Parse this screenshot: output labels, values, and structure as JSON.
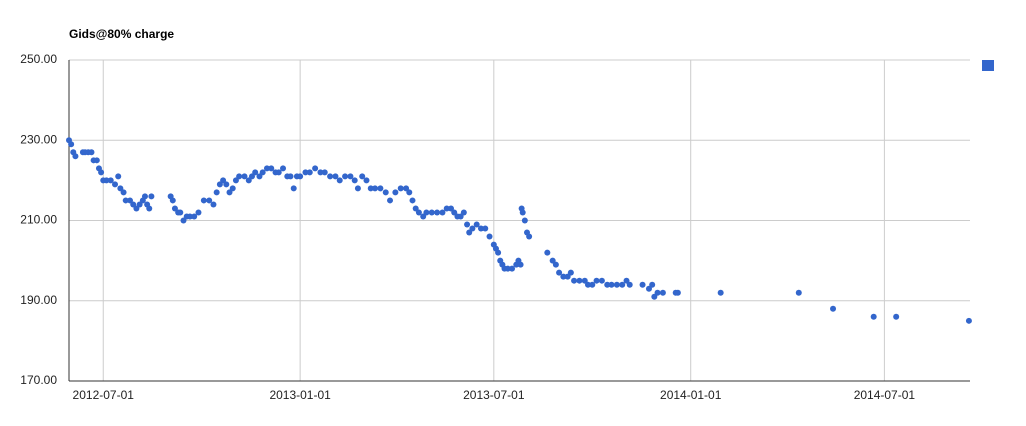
{
  "chart_data": {
    "type": "scatter",
    "title": "Gids@80% charge",
    "x": [
      "2012-05-30",
      "2012-06-01",
      "2012-06-03",
      "2012-06-05",
      "2012-06-12",
      "2012-06-14",
      "2012-06-17",
      "2012-06-20",
      "2012-06-22",
      "2012-06-25",
      "2012-06-27",
      "2012-06-29",
      "2012-07-01",
      "2012-07-04",
      "2012-07-08",
      "2012-07-12",
      "2012-07-15",
      "2012-07-17",
      "2012-07-20",
      "2012-07-22",
      "2012-07-26",
      "2012-07-29",
      "2012-08-01",
      "2012-08-04",
      "2012-08-07",
      "2012-08-09",
      "2012-08-11",
      "2012-08-13",
      "2012-08-15",
      "2012-09-02",
      "2012-09-04",
      "2012-09-06",
      "2012-09-09",
      "2012-09-11",
      "2012-09-14",
      "2012-09-17",
      "2012-09-20",
      "2012-09-24",
      "2012-09-28",
      "2012-10-03",
      "2012-10-08",
      "2012-10-12",
      "2012-10-15",
      "2012-10-18",
      "2012-10-21",
      "2012-10-24",
      "2012-10-27",
      "2012-10-30",
      "2012-11-02",
      "2012-11-05",
      "2012-11-10",
      "2012-11-14",
      "2012-11-17",
      "2012-11-20",
      "2012-11-24",
      "2012-11-27",
      "2012-12-01",
      "2012-12-05",
      "2012-12-09",
      "2012-12-12",
      "2012-12-16",
      "2012-12-20",
      "2012-12-23",
      "2012-12-26",
      "2012-12-29",
      "2013-01-01",
      "2013-01-06",
      "2013-01-10",
      "2013-01-15",
      "2013-01-20",
      "2013-01-24",
      "2013-01-29",
      "2013-02-03",
      "2013-02-07",
      "2013-02-12",
      "2013-02-17",
      "2013-02-21",
      "2013-02-24",
      "2013-02-28",
      "2013-03-04",
      "2013-03-08",
      "2013-03-12",
      "2013-03-17",
      "2013-03-22",
      "2013-03-26",
      "2013-03-31",
      "2013-04-05",
      "2013-04-10",
      "2013-04-13",
      "2013-04-16",
      "2013-04-19",
      "2013-04-22",
      "2013-04-26",
      "2013-04-29",
      "2013-05-04",
      "2013-05-09",
      "2013-05-14",
      "2013-05-18",
      "2013-05-22",
      "2013-05-25",
      "2013-05-28",
      "2013-05-31",
      "2013-06-03",
      "2013-06-06",
      "2013-06-08",
      "2013-06-11",
      "2013-06-15",
      "2013-06-19",
      "2013-06-23",
      "2013-06-27",
      "2013-07-01",
      "2013-07-03",
      "2013-07-05",
      "2013-07-07",
      "2013-07-09",
      "2013-07-11",
      "2013-07-14",
      "2013-07-18",
      "2013-07-22",
      "2013-07-24",
      "2013-07-26",
      "2013-07-27",
      "2013-07-28",
      "2013-07-30",
      "2013-08-01",
      "2013-08-03",
      "2013-08-20",
      "2013-08-25",
      "2013-08-28",
      "2013-08-31",
      "2013-09-04",
      "2013-09-08",
      "2013-09-11",
      "2013-09-14",
      "2013-09-19",
      "2013-09-24",
      "2013-09-27",
      "2013-10-01",
      "2013-10-05",
      "2013-10-10",
      "2013-10-15",
      "2013-10-19",
      "2013-10-24",
      "2013-10-29",
      "2013-11-02",
      "2013-11-05",
      "2013-11-17",
      "2013-11-23",
      "2013-11-26",
      "2013-11-28",
      "2013-12-01",
      "2013-12-06",
      "2013-12-18",
      "2013-12-20",
      "2014-01-29",
      "2014-04-12",
      "2014-05-14",
      "2014-06-21",
      "2014-07-12",
      "2014-09-18"
    ],
    "series": [
      {
        "color": "#3366cc",
        "values": [
          230,
          229,
          227,
          226,
          227,
          227,
          227,
          227,
          225,
          225,
          223,
          222,
          220,
          220,
          220,
          219,
          221,
          218,
          217,
          215,
          215,
          214,
          213,
          214,
          215,
          216,
          214,
          213,
          216,
          216,
          215,
          213,
          212,
          212,
          210,
          211,
          211,
          211,
          212,
          215,
          215,
          214,
          217,
          219,
          220,
          219,
          217,
          218,
          220,
          221,
          221,
          220,
          221,
          222,
          221,
          222,
          223,
          223,
          222,
          222,
          223,
          221,
          221,
          218,
          221,
          221,
          222,
          222,
          223,
          222,
          222,
          221,
          221,
          220,
          221,
          221,
          220,
          218,
          221,
          220,
          218,
          218,
          218,
          217,
          215,
          217,
          218,
          218,
          217,
          215,
          213,
          212,
          211,
          212,
          212,
          212,
          212,
          213,
          213,
          212,
          211,
          211,
          212,
          209,
          207,
          208,
          209,
          208,
          208,
          206,
          204,
          203,
          202,
          200,
          199,
          198,
          198,
          198,
          199,
          200,
          199,
          213,
          212,
          210,
          207,
          206,
          202,
          200,
          199,
          197,
          196,
          196,
          197,
          195,
          195,
          195,
          194,
          194,
          195,
          195,
          194,
          194,
          194,
          194,
          195,
          194,
          194,
          193,
          194,
          191,
          192,
          192,
          192,
          192,
          192,
          192,
          188,
          186,
          186,
          185
        ]
      }
    ],
    "xlim": [
      "2012-05-30",
      "2014-09-19"
    ],
    "xticks": [
      "2012-07-01",
      "2013-01-01",
      "2013-07-01",
      "2014-01-01",
      "2014-07-01"
    ],
    "ylim": [
      170,
      250
    ],
    "yticks": [
      {
        "value": 170,
        "label": "170.00"
      },
      {
        "value": 190,
        "label": "190.00"
      },
      {
        "value": 210,
        "label": "210.00"
      },
      {
        "value": 230,
        "label": "230.00"
      },
      {
        "value": 250,
        "label": "250.00"
      }
    ],
    "grid": true,
    "legend": "right"
  }
}
